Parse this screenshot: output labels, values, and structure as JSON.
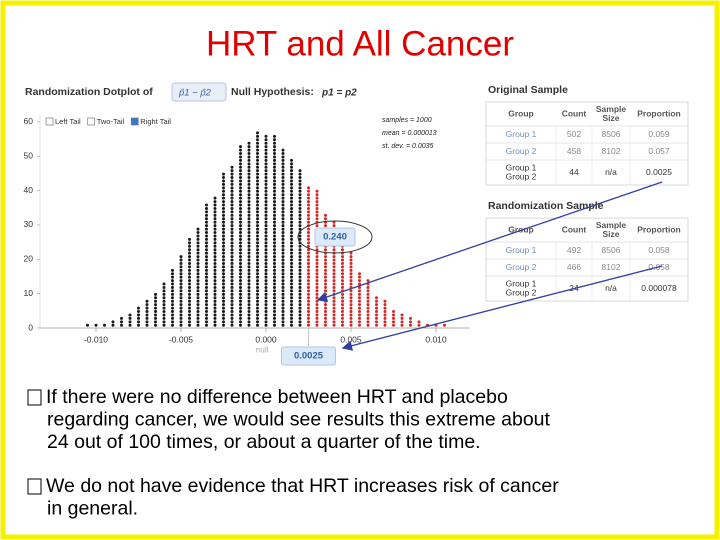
{
  "title": "HRT and All Cancer",
  "dotplot": {
    "type": "dotplot",
    "heading": "Randomization Dotplot of",
    "statistic": "p̂1 − p̂2",
    "null_hypothesis": "Null Hypothesis:",
    "null_expression": "p1 = p2",
    "tail_options": [
      "Left Tail",
      "Two-Tail",
      "Right Tail"
    ],
    "selected_tail": 2,
    "stats": [
      "samples = 1000",
      "mean = 0.000013",
      "st. dev. = 0.0035"
    ],
    "proportion": "0.240",
    "cutoff": 0.0025,
    "null_label": "null",
    "colors": {
      "below": "#1a1a1a",
      "above": "#d62728"
    },
    "x": [
      -0.0105,
      -0.01,
      -0.0095,
      -0.009,
      -0.0085,
      -0.008,
      -0.0075,
      -0.007,
      -0.0065,
      -0.006,
      -0.0055,
      -0.005,
      -0.0045,
      -0.004,
      -0.0035,
      -0.003,
      -0.0025,
      -0.002,
      -0.0015,
      -0.001,
      -0.0005,
      0,
      0.0005,
      0.001,
      0.0015,
      0.002,
      0.0025,
      0.003,
      0.0035,
      0.004,
      0.0045,
      0.005,
      0.0055,
      0.006,
      0.0065,
      0.007,
      0.0075,
      0.008,
      0.0085,
      0.009,
      0.0095,
      0.01,
      0.0105
    ],
    "counts": [
      1,
      1,
      1,
      2,
      3,
      4,
      6,
      8,
      10,
      13,
      17,
      21,
      26,
      29,
      36,
      38,
      45,
      47,
      53,
      54,
      57,
      56,
      56,
      52,
      49,
      46,
      41,
      40,
      33,
      31,
      24,
      22,
      16,
      14,
      9,
      8,
      5,
      4,
      3,
      2,
      1,
      1,
      1
    ],
    "xlim": [
      -0.0125,
      0.0125
    ],
    "xticks": [
      {
        "value": -0.01,
        "label": "-0.010"
      },
      -0.005,
      {
        "value": 0,
        "label": "0.000"
      },
      0.005,
      {
        "value": 0.01,
        "label": "0.010"
      }
    ],
    "ylim": [
      0,
      62
    ],
    "yticks": [
      0,
      10,
      20,
      30,
      40,
      50,
      60
    ]
  },
  "original_sample": {
    "title": "Original Sample",
    "headers": [
      "Group",
      "Count",
      [
        "Sample",
        "Size"
      ],
      "Proportion"
    ],
    "rows": [
      [
        "Group 1",
        "502",
        "8506",
        "0.059"
      ],
      [
        "Group 2",
        "458",
        "8102",
        "0.057"
      ],
      [
        [
          "Group 1",
          "Group 2"
        ],
        "44",
        "n/a",
        "0.0025"
      ]
    ]
  },
  "randomization_sample": {
    "title": "Randomization Sample",
    "headers": [
      "Group",
      "Count",
      [
        "Sample",
        "Size"
      ],
      "Proportion"
    ],
    "rows": [
      [
        "Group 1",
        "492",
        "8506",
        "0.058"
      ],
      [
        "Group 2",
        "466",
        "8102",
        "0.058"
      ],
      [
        [
          "Group 1",
          "Group 2"
        ],
        "24",
        "n/a",
        "0.000078"
      ]
    ]
  },
  "bullets": [
    {
      "lines": [
        "If there were no difference between HRT and placebo",
        "regarding cancer, we would see results this extreme about",
        "24 out of 100 times, or about a quarter of the time."
      ]
    },
    {
      "lines": [
        "We do not have evidence that HRT increases risk of cancer",
        "in general."
      ]
    }
  ]
}
